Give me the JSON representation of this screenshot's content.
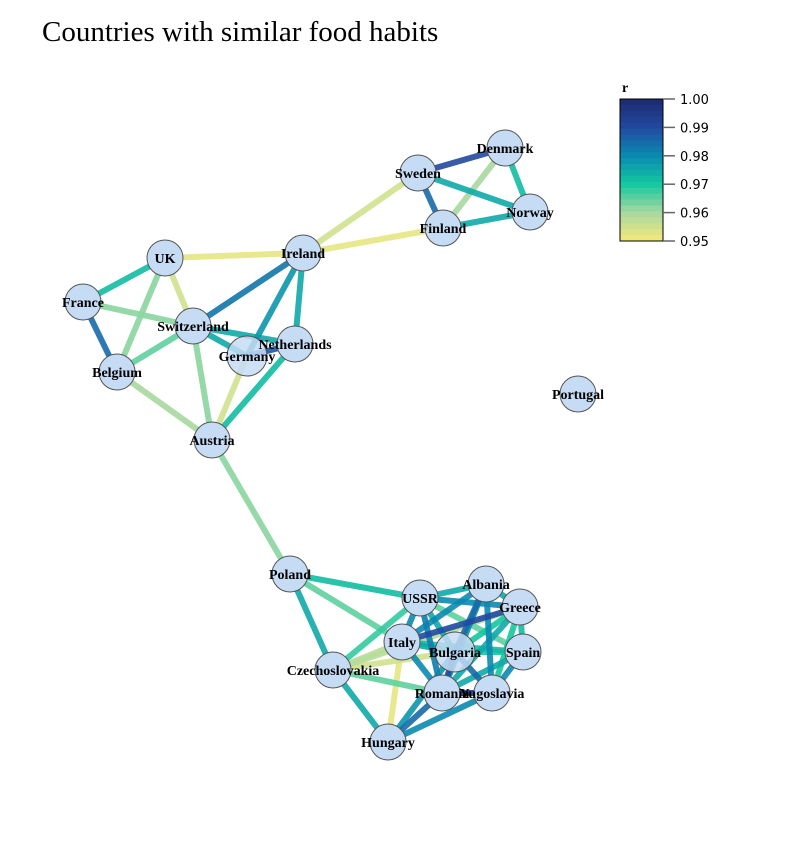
{
  "title": "Countries with similar food habits",
  "legend": {
    "title": "r",
    "ticks": [
      "1.00",
      "0.99",
      "0.98",
      "0.97",
      "0.96",
      "0.95"
    ],
    "range": [
      0.95,
      1.0
    ],
    "colors": [
      "#f5e97a",
      "#a8d8a0",
      "#14c8a0",
      "#0a8ab0",
      "#2149a0",
      "#1e2a6e"
    ]
  },
  "node_color": "#c6dcf5",
  "nodes": [
    "Denmark",
    "Sweden",
    "Norway",
    "Finland",
    "Ireland",
    "UK",
    "France",
    "Switzerland",
    "Netherlands",
    "Germany",
    "Belgium",
    "Austria",
    "Portugal",
    "Poland",
    "USSR",
    "Albania",
    "Greece",
    "Italy",
    "Bulgaria",
    "Spain",
    "Czechoslovakia",
    "Romania",
    "Yugoslavia",
    "Hungary"
  ],
  "edges": [
    [
      "Sweden",
      "Denmark",
      0.99
    ],
    [
      "Denmark",
      "Norway",
      0.972
    ],
    [
      "Denmark",
      "Finland",
      0.96
    ],
    [
      "Sweden",
      "Norway",
      0.975
    ],
    [
      "Sweden",
      "Finland",
      0.985
    ],
    [
      "Finland",
      "Norway",
      0.975
    ],
    [
      "Sweden",
      "Ireland",
      0.955
    ],
    [
      "Finland",
      "Ireland",
      0.952
    ],
    [
      "UK",
      "Ireland",
      0.952
    ],
    [
      "UK",
      "France",
      0.972
    ],
    [
      "UK",
      "Switzerland",
      0.955
    ],
    [
      "UK",
      "Belgium",
      0.962
    ],
    [
      "France",
      "Belgium",
      0.985
    ],
    [
      "France",
      "Switzerland",
      0.962
    ],
    [
      "Switzerland",
      "Ireland",
      0.983
    ],
    [
      "Switzerland",
      "Netherlands",
      0.975
    ],
    [
      "Switzerland",
      "Germany",
      0.975
    ],
    [
      "Switzerland",
      "Belgium",
      0.965
    ],
    [
      "Switzerland",
      "Austria",
      0.962
    ],
    [
      "Ireland",
      "Germany",
      0.978
    ],
    [
      "Ireland",
      "Netherlands",
      0.975
    ],
    [
      "Germany",
      "Netherlands",
      0.988
    ],
    [
      "Germany",
      "Austria",
      0.955
    ],
    [
      "Netherlands",
      "Austria",
      0.972
    ],
    [
      "Belgium",
      "Austria",
      0.96
    ],
    [
      "Austria",
      "Poland",
      0.962
    ],
    [
      "Poland",
      "USSR",
      0.972
    ],
    [
      "Poland",
      "Czechoslovakia",
      0.975
    ],
    [
      "Poland",
      "Italy",
      0.965
    ],
    [
      "Czechoslovakia",
      "Hungary",
      0.975
    ],
    [
      "Czechoslovakia",
      "USSR",
      0.968
    ],
    [
      "Czechoslovakia",
      "Italy",
      0.958
    ],
    [
      "Czechoslovakia",
      "Bulgaria",
      0.955
    ],
    [
      "Czechoslovakia",
      "Romania",
      0.965
    ],
    [
      "Italy",
      "Hungary",
      0.952
    ],
    [
      "Hungary",
      "Romania",
      0.985
    ],
    [
      "Hungary",
      "Yugoslavia",
      0.98
    ],
    [
      "Hungary",
      "Bulgaria",
      0.978
    ],
    [
      "USSR",
      "Albania",
      0.975
    ],
    [
      "USSR",
      "Greece",
      0.98
    ],
    [
      "USSR",
      "Italy",
      0.98
    ],
    [
      "USSR",
      "Bulgaria",
      0.975
    ],
    [
      "USSR",
      "Spain",
      0.965
    ],
    [
      "USSR",
      "Romania",
      0.982
    ],
    [
      "Albania",
      "Greece",
      0.975
    ],
    [
      "Albania",
      "Italy",
      0.98
    ],
    [
      "Albania",
      "Bulgaria",
      0.985
    ],
    [
      "Albania",
      "Romania",
      0.98
    ],
    [
      "Albania",
      "Yugoslavia",
      0.98
    ],
    [
      "Greece",
      "Italy",
      0.99
    ],
    [
      "Greece",
      "Spain",
      0.972
    ],
    [
      "Greece",
      "Bulgaria",
      0.97
    ],
    [
      "Greece",
      "Yugoslavia",
      0.97
    ],
    [
      "Greece",
      "Romania",
      0.975
    ],
    [
      "Italy",
      "Bulgaria",
      0.975
    ],
    [
      "Italy",
      "Spain",
      0.972
    ],
    [
      "Italy",
      "Romania",
      0.98
    ],
    [
      "Bulgaria",
      "Spain",
      0.97
    ],
    [
      "Bulgaria",
      "Romania",
      0.99
    ],
    [
      "Bulgaria",
      "Yugoslavia",
      0.985
    ],
    [
      "Romania",
      "Yugoslavia",
      0.995
    ],
    [
      "Spain",
      "Yugoslavia",
      0.98
    ],
    [
      "Spain",
      "Romania",
      0.975
    ],
    [
      "Greece",
      "Czechoslovakia",
      0.958
    ]
  ]
}
